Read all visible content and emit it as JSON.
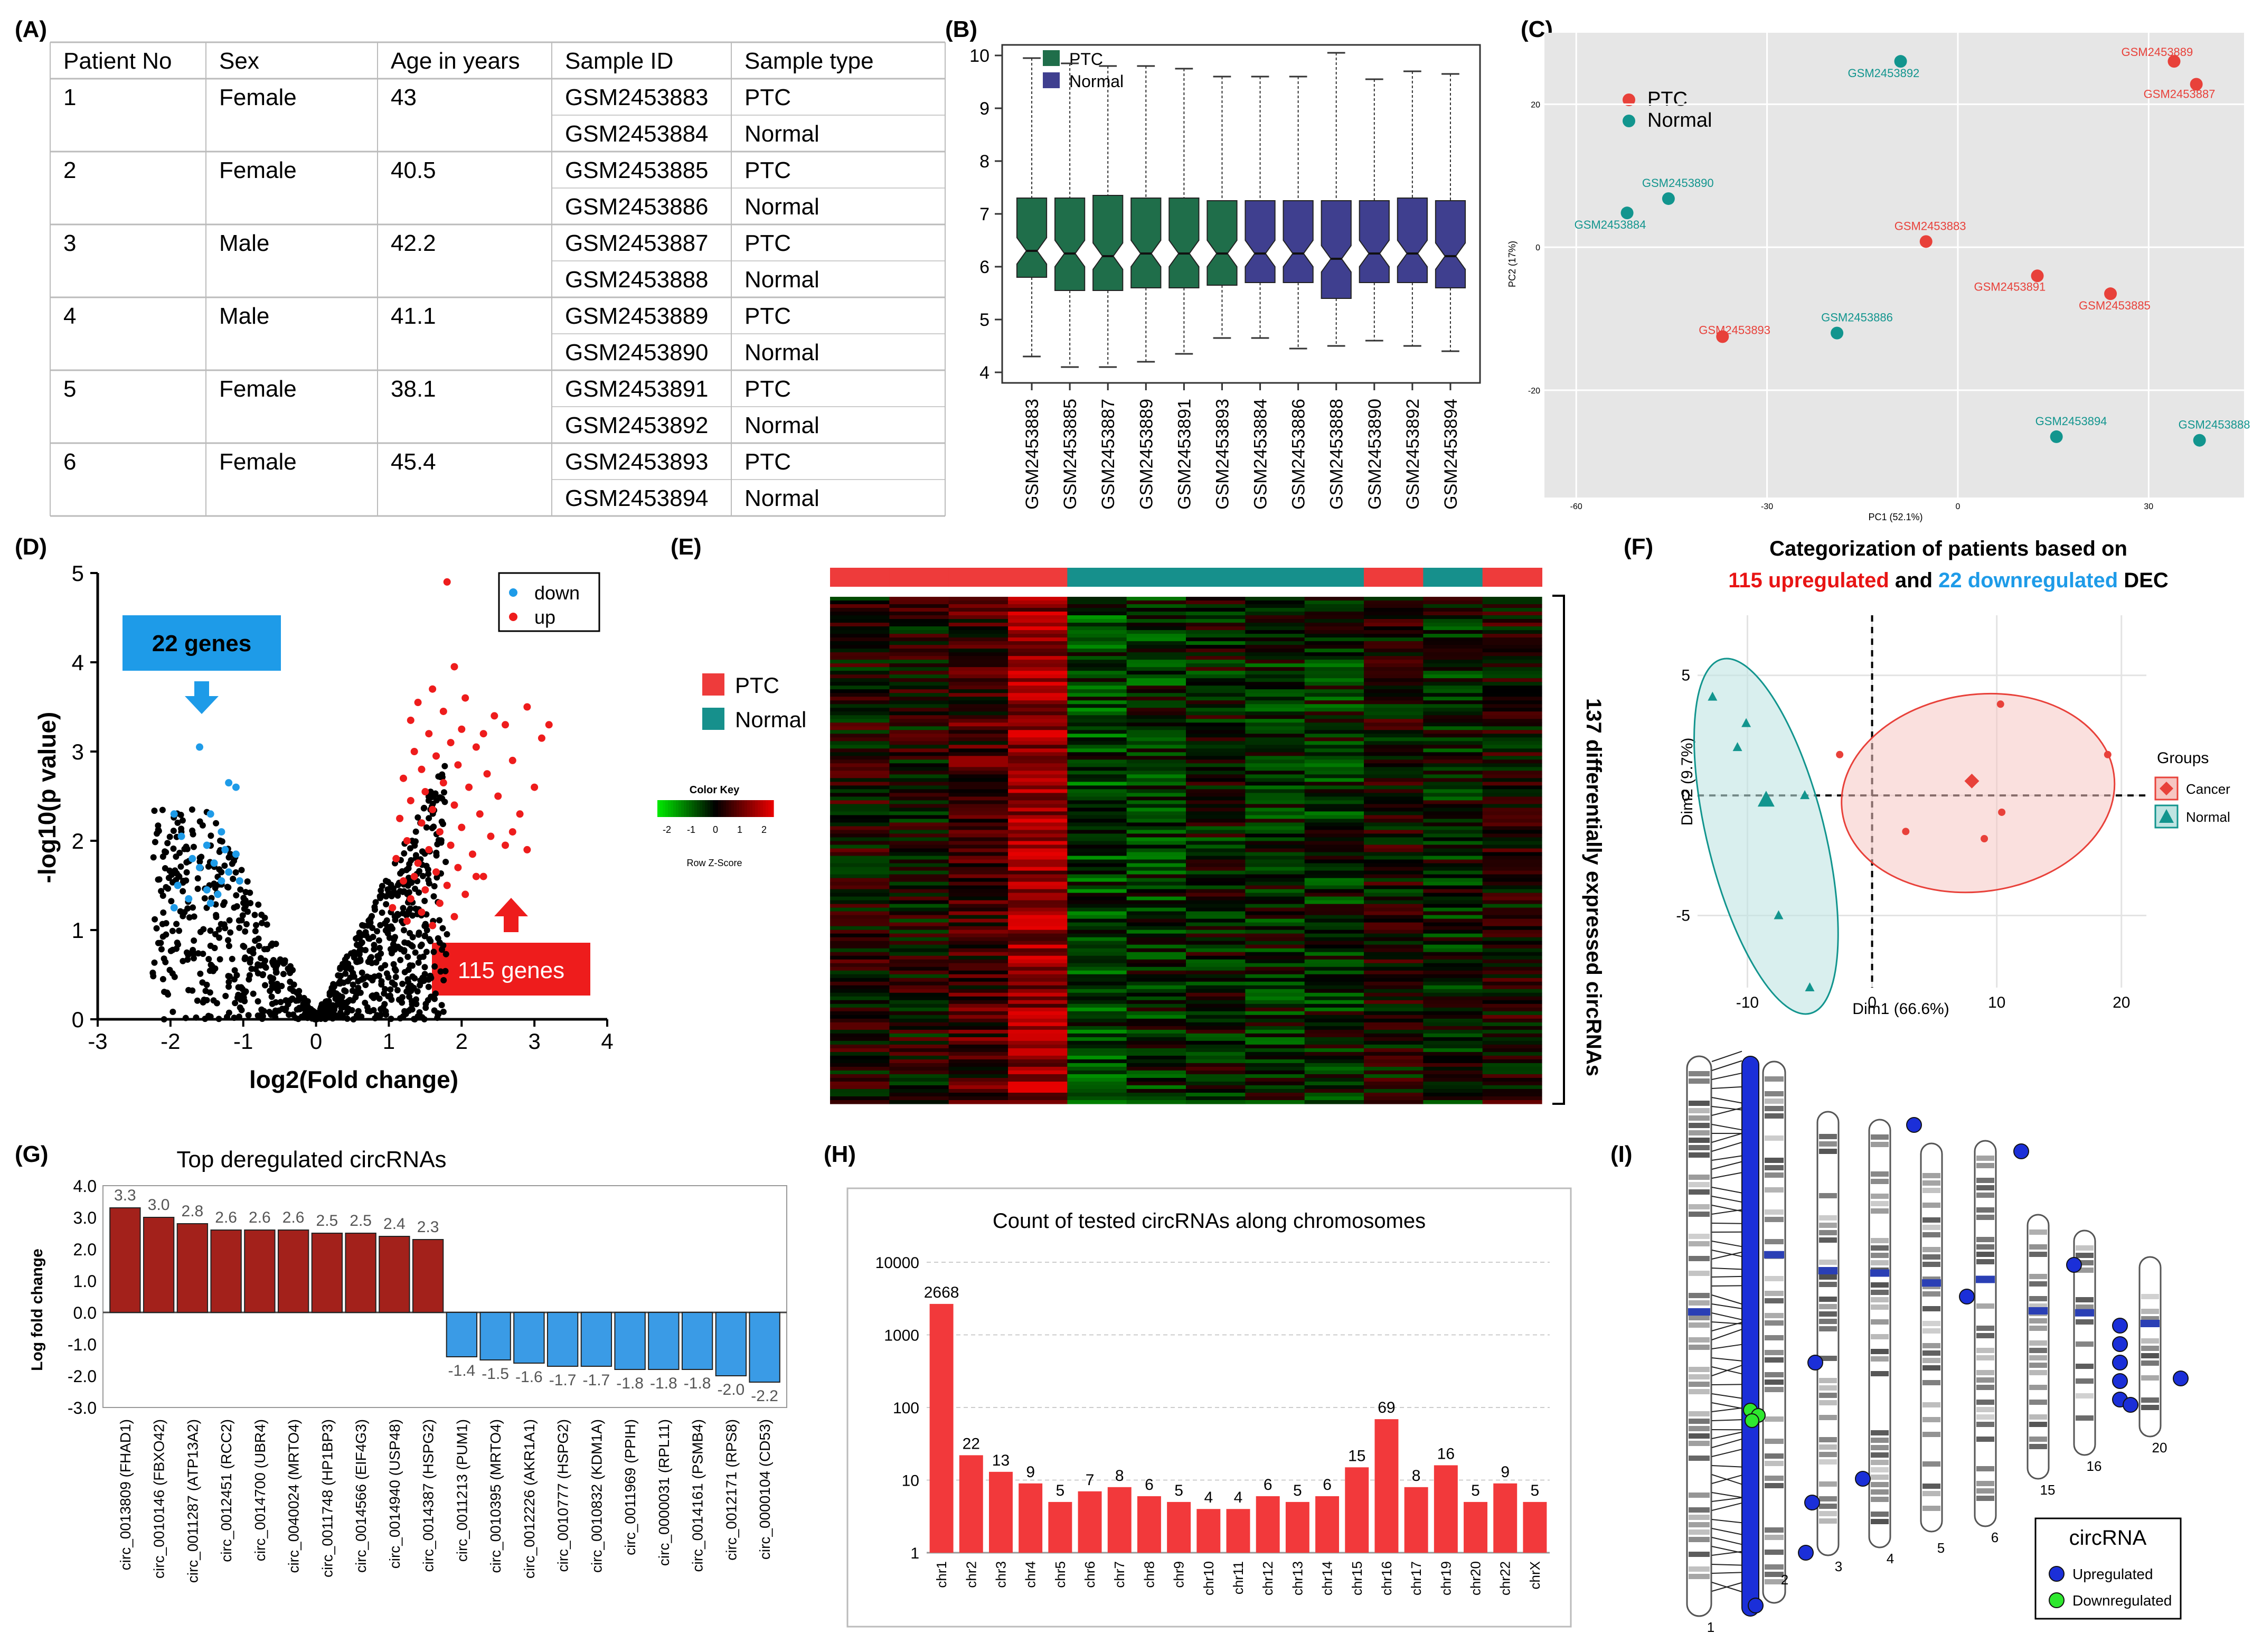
{
  "panel_labels": [
    "(A)",
    "(B)",
    "(C)",
    "(D)",
    "(E)",
    "(F)",
    "(G)",
    "(H)",
    "(I)"
  ],
  "colors": {
    "ptc_green": "#1f6e4a",
    "normal_blue": "#3f3f8f",
    "pca_red": "#e8413a",
    "pca_teal": "#12958e",
    "volcano_red": "#ee1c1c",
    "volcano_blue": "#1e9be8",
    "bar_red": "#a3211b",
    "bar_blue": "#3a9be6",
    "hist_red": "#f2393b",
    "up_blue": "#1b2fd8",
    "down_green": "#2ee82e"
  },
  "panelA": {
    "headers": [
      "Patient No",
      "Sex",
      "Age in years",
      "Sample ID",
      "Sample type"
    ],
    "patients": [
      {
        "no": "1",
        "sex": "Female",
        "age": "43",
        "samples": [
          [
            "GSM2453883",
            "PTC"
          ],
          [
            "GSM2453884",
            "Normal"
          ]
        ]
      },
      {
        "no": "2",
        "sex": "Female",
        "age": "40.5",
        "samples": [
          [
            "GSM2453885",
            "PTC"
          ],
          [
            "GSM2453886",
            "Normal"
          ]
        ]
      },
      {
        "no": "3",
        "sex": "Male",
        "age": "42.2",
        "samples": [
          [
            "GSM2453887",
            "PTC"
          ],
          [
            "GSM2453888",
            "Normal"
          ]
        ]
      },
      {
        "no": "4",
        "sex": "Male",
        "age": "41.1",
        "samples": [
          [
            "GSM2453889",
            "PTC"
          ],
          [
            "GSM2453890",
            "Normal"
          ]
        ]
      },
      {
        "no": "5",
        "sex": "Female",
        "age": "38.1",
        "samples": [
          [
            "GSM2453891",
            "PTC"
          ],
          [
            "GSM2453892",
            "Normal"
          ]
        ]
      },
      {
        "no": "6",
        "sex": "Female",
        "age": "45.4",
        "samples": [
          [
            "GSM2453893",
            "PTC"
          ],
          [
            "GSM2453894",
            "Normal"
          ]
        ]
      }
    ]
  },
  "chart_data": [
    {
      "id": "B",
      "type": "boxplot",
      "legend": [
        "PTC",
        "Normal"
      ],
      "ylim": [
        4,
        10
      ],
      "yticks": [
        4,
        5,
        6,
        7,
        8,
        9,
        10
      ],
      "boxes": [
        {
          "label": "GSM2453883",
          "group": "PTC",
          "min": 4.3,
          "q1": 5.8,
          "med": 6.3,
          "q3": 7.3,
          "max": 9.95
        },
        {
          "label": "GSM2453885",
          "group": "PTC",
          "min": 4.1,
          "q1": 5.55,
          "med": 6.25,
          "q3": 7.3,
          "max": 9.85
        },
        {
          "label": "GSM2453887",
          "group": "PTC",
          "min": 4.1,
          "q1": 5.55,
          "med": 6.2,
          "q3": 7.35,
          "max": 9.8
        },
        {
          "label": "GSM2453889",
          "group": "PTC",
          "min": 4.2,
          "q1": 5.6,
          "med": 6.25,
          "q3": 7.3,
          "max": 9.8
        },
        {
          "label": "GSM2453891",
          "group": "PTC",
          "min": 4.35,
          "q1": 5.6,
          "med": 6.25,
          "q3": 7.3,
          "max": 9.75
        },
        {
          "label": "GSM2453893",
          "group": "PTC",
          "min": 4.65,
          "q1": 5.65,
          "med": 6.25,
          "q3": 7.25,
          "max": 9.6
        },
        {
          "label": "GSM2453884",
          "group": "Normal",
          "min": 4.65,
          "q1": 5.7,
          "med": 6.25,
          "q3": 7.25,
          "max": 9.6
        },
        {
          "label": "GSM2453886",
          "group": "Normal",
          "min": 4.45,
          "q1": 5.7,
          "med": 6.25,
          "q3": 7.25,
          "max": 9.6
        },
        {
          "label": "GSM2453888",
          "group": "Normal",
          "min": 4.5,
          "q1": 5.4,
          "med": 6.15,
          "q3": 7.25,
          "max": 10.05
        },
        {
          "label": "GSM2453890",
          "group": "Normal",
          "min": 4.6,
          "q1": 5.7,
          "med": 6.25,
          "q3": 7.25,
          "max": 9.55
        },
        {
          "label": "GSM2453892",
          "group": "Normal",
          "min": 4.5,
          "q1": 5.7,
          "med": 6.25,
          "q3": 7.3,
          "max": 9.7
        },
        {
          "label": "GSM2453894",
          "group": "Normal",
          "min": 4.4,
          "q1": 5.6,
          "med": 6.2,
          "q3": 7.25,
          "max": 9.65
        }
      ]
    },
    {
      "id": "C",
      "type": "scatter",
      "xlabel": "PC1 (52.1%)",
      "ylabel": "PC2 (17%)",
      "xlim": [
        -65,
        45
      ],
      "ylim": [
        -35,
        30
      ],
      "xticks": [
        -60,
        -30,
        0,
        30
      ],
      "yticks": [
        -20,
        0,
        20
      ],
      "legend": [
        "PTC",
        "Normal"
      ],
      "points": [
        {
          "label": "GSM2453889",
          "group": "PTC",
          "x": 34,
          "y": 26
        },
        {
          "label": "GSM2453887",
          "group": "PTC",
          "x": 37.5,
          "y": 22.8
        },
        {
          "label": "GSM2453883",
          "group": "PTC",
          "x": -5,
          "y": 0.8
        },
        {
          "label": "GSM2453891",
          "group": "PTC",
          "x": 12.5,
          "y": -4
        },
        {
          "label": "GSM2453885",
          "group": "PTC",
          "x": 24,
          "y": -6.5
        },
        {
          "label": "GSM2453893",
          "group": "PTC",
          "x": -37,
          "y": -12.5
        },
        {
          "label": "GSM2453892",
          "group": "Normal",
          "x": -9,
          "y": 26
        },
        {
          "label": "GSM2453890",
          "group": "Normal",
          "x": -45.5,
          "y": 6.8
        },
        {
          "label": "GSM2453884",
          "group": "Normal",
          "x": -52,
          "y": 4.8
        },
        {
          "label": "GSM2453886",
          "group": "Normal",
          "x": -19,
          "y": -12
        },
        {
          "label": "GSM2453894",
          "group": "Normal",
          "x": 15.5,
          "y": -26.5
        },
        {
          "label": "GSM2453888",
          "group": "Normal",
          "x": 38,
          "y": -27
        }
      ]
    },
    {
      "id": "D",
      "type": "scatter",
      "xlabel": "log2(Fold change)",
      "ylabel": "-log10(p value)",
      "xlim": [
        -3,
        4
      ],
      "ylim": [
        0,
        5
      ],
      "xticks": [
        -3,
        -2,
        -1,
        0,
        1,
        2,
        3,
        4
      ],
      "yticks": [
        0,
        1,
        2,
        3,
        4,
        5
      ],
      "legend": [
        "down",
        "up"
      ],
      "annotations": [
        "22 genes",
        "115 genes"
      ],
      "down_points": [
        [
          -1.6,
          3.05
        ],
        [
          -1.2,
          2.65
        ],
        [
          -1.1,
          2.6
        ],
        [
          -1.95,
          2.3
        ],
        [
          -1.45,
          2.3
        ],
        [
          -1.3,
          2.1
        ],
        [
          -1.85,
          2.05
        ],
        [
          -1.5,
          1.95
        ],
        [
          -1.25,
          1.9
        ],
        [
          -1.1,
          1.85
        ],
        [
          -1.7,
          1.8
        ],
        [
          -1.4,
          1.75
        ],
        [
          -1.6,
          1.7
        ],
        [
          -1.2,
          1.65
        ],
        [
          -1.3,
          1.55
        ],
        [
          -1.05,
          1.55
        ],
        [
          -1.9,
          1.5
        ],
        [
          -1.5,
          1.45
        ],
        [
          -1.35,
          1.4
        ],
        [
          -1.75,
          1.35
        ],
        [
          -1.45,
          1.3
        ],
        [
          -1.95,
          1.25
        ]
      ],
      "up_points": [
        [
          1.8,
          4.9
        ],
        [
          2.9,
          3.5
        ],
        [
          2.6,
          3.3
        ],
        [
          3.2,
          3.3
        ],
        [
          3.1,
          3.15
        ],
        [
          2.3,
          3.2
        ],
        [
          1.9,
          3.95
        ],
        [
          1.6,
          3.7
        ],
        [
          2.05,
          3.6
        ],
        [
          1.4,
          3.55
        ],
        [
          1.75,
          3.45
        ],
        [
          2.45,
          3.4
        ],
        [
          1.3,
          3.35
        ],
        [
          2.0,
          3.25
        ],
        [
          1.55,
          3.2
        ],
        [
          1.85,
          3.1
        ],
        [
          2.2,
          3.05
        ],
        [
          1.35,
          3.0
        ],
        [
          1.65,
          2.95
        ],
        [
          2.7,
          2.9
        ],
        [
          1.95,
          2.85
        ],
        [
          1.45,
          2.8
        ],
        [
          2.35,
          2.75
        ],
        [
          1.2,
          2.7
        ],
        [
          1.75,
          2.65
        ],
        [
          2.1,
          2.6
        ],
        [
          1.5,
          2.55
        ],
        [
          2.5,
          2.5
        ],
        [
          1.3,
          2.45
        ],
        [
          1.9,
          2.4
        ],
        [
          1.6,
          2.35
        ],
        [
          2.25,
          2.3
        ],
        [
          2.8,
          2.3
        ],
        [
          1.15,
          2.25
        ],
        [
          1.45,
          2.2
        ],
        [
          2.0,
          2.15
        ],
        [
          1.7,
          2.1
        ],
        [
          2.4,
          2.05
        ],
        [
          1.25,
          2.0
        ],
        [
          1.85,
          1.95
        ],
        [
          2.6,
          1.95
        ],
        [
          1.55,
          1.9
        ],
        [
          2.15,
          1.85
        ],
        [
          1.1,
          1.8
        ],
        [
          1.4,
          1.75
        ],
        [
          1.95,
          1.7
        ],
        [
          2.9,
          1.9
        ],
        [
          1.65,
          1.65
        ],
        [
          2.3,
          1.6
        ],
        [
          1.2,
          1.55
        ],
        [
          1.8,
          1.5
        ],
        [
          1.5,
          1.45
        ],
        [
          2.05,
          1.4
        ],
        [
          1.3,
          1.35
        ],
        [
          1.7,
          1.3
        ],
        [
          1.05,
          1.25
        ],
        [
          1.45,
          1.2
        ],
        [
          1.9,
          1.15
        ],
        [
          1.25,
          1.1
        ],
        [
          1.6,
          1.05
        ],
        [
          2.2,
          1.6
        ],
        [
          1.35,
          1.6
        ],
        [
          2.7,
          2.1
        ],
        [
          3.0,
          2.6
        ]
      ]
    },
    {
      "id": "E",
      "type": "heatmap",
      "legend": [
        "PTC",
        "Normal"
      ],
      "color_key_title": "Color Key",
      "color_key_xlabel": "Row Z-Score",
      "color_key_ticks": [
        "-2",
        "-1",
        "0",
        "1",
        "2"
      ],
      "side_label": "137 differentially expressed circRNAs",
      "column_groups": [
        "PTC",
        "PTC",
        "PTC",
        "PTC",
        "Normal",
        "Normal",
        "Normal",
        "Normal",
        "Normal",
        "PTC",
        "Normal",
        "PTC"
      ],
      "rows": 137
    },
    {
      "id": "F",
      "type": "scatter",
      "title_line1": "Categorization of patients based on",
      "title_line2_a": "115 upregulated",
      "title_line2_b": " and ",
      "title_line2_c": "22 downregulated",
      "title_line2_d": " DEC",
      "xlabel": "Dim1 (66.6%)",
      "ylabel": "Dim2 (9.7%)",
      "xlim": [
        -14,
        22
      ],
      "ylim": [
        -8,
        7.5
      ],
      "xticks": [
        -10,
        0,
        10,
        20
      ],
      "yticks": [
        -5,
        0,
        5
      ],
      "legend_title": "Groups",
      "legend": [
        "Cancer",
        "Normal"
      ],
      "cancer_points": [
        [
          10.3,
          3.8
        ],
        [
          18.9,
          1.7
        ],
        [
          -2.6,
          1.7
        ],
        [
          2.7,
          -1.5
        ],
        [
          9.0,
          -1.8
        ],
        [
          10.4,
          -0.7
        ],
        [
          8.0,
          0.6
        ]
      ],
      "normal_points": [
        [
          -12.8,
          4.1
        ],
        [
          -10.1,
          3.0
        ],
        [
          -10.8,
          2.0
        ],
        [
          -5.4,
          0.0
        ],
        [
          -7.5,
          -5.0
        ],
        [
          -5.0,
          -8.0
        ],
        [
          -8.5,
          -0.2
        ]
      ],
      "cancer_centroid": [
        8.0,
        0.6
      ],
      "normal_centroid": [
        -8.5,
        -0.2
      ]
    },
    {
      "id": "G",
      "type": "bar",
      "title": "Top deregulated circRNAs",
      "ylabel": "Log fold change",
      "ylim": [
        -3,
        4
      ],
      "yticks": [
        "4.0",
        "3.0",
        "2.0",
        "1.0",
        "0.0",
        "-1.0",
        "-2.0",
        "-3.0"
      ],
      "categories": [
        "circ_0013809 (FHAD1)",
        "circ_0010146 (FBXO42)",
        "circ_0011287 (ATP13A2)",
        "circ_0012451 (RCC2)",
        "circ_0014700 (UBR4)",
        "circ_0040024 (MRTO4)",
        "circ_0011748 (HP1BP3)",
        "circ_0014566 (EIF4G3)",
        "circ_0014940 (USP48)",
        "circ_0014387 (HSPG2)",
        "circ_0011213 (PUM1)",
        "circ_0010395 (MRTO4)",
        "circ_0012226 (AKR1A1)",
        "circ_0010777 (HSPG2)",
        "circ_0010832 (KDM1A)",
        "circ_0011969 (PPIH)",
        "circ_0000031 (RPL11)",
        "circ_0014161 (PSMB4)",
        "circ_0012171 (RPS8)",
        "circ_0000104 (CD53)"
      ],
      "values": [
        3.3,
        3.0,
        2.8,
        2.6,
        2.6,
        2.6,
        2.5,
        2.5,
        2.4,
        2.3,
        -1.4,
        -1.5,
        -1.6,
        -1.7,
        -1.7,
        -1.8,
        -1.8,
        -1.8,
        -2.0,
        -2.2
      ],
      "value_labels": [
        "3.3",
        "3.0",
        "2.8",
        "2.6",
        "2.6",
        "2.6",
        "2.5",
        "2.5",
        "2.4",
        "2.3",
        "-1.4",
        "-1.5",
        "-1.6",
        "-1.7",
        "-1.7",
        "-1.8",
        "-1.8",
        "-1.8",
        "-2.0",
        "-2.2"
      ]
    },
    {
      "id": "H",
      "type": "bar",
      "scale": "log",
      "title": "Count of tested circRNAs along chromosomes",
      "yticks": [
        "10000",
        "1000",
        "100",
        "10",
        "1"
      ],
      "categories": [
        "chr1",
        "chr2",
        "chr3",
        "chr4",
        "chr5",
        "chr6",
        "chr7",
        "chr8",
        "chr9",
        "chr10",
        "chr11",
        "chr12",
        "chr13",
        "chr14",
        "chr15",
        "chr16",
        "chr17",
        "chr19",
        "chr20",
        "chr22",
        "chrX"
      ],
      "values": [
        2668,
        22,
        13,
        9,
        5,
        7,
        8,
        6,
        5,
        4,
        4,
        6,
        5,
        6,
        15,
        69,
        8,
        16,
        5,
        9,
        5
      ]
    },
    {
      "id": "I",
      "type": "ideogram",
      "chromosome_labels": [
        "1",
        "2",
        "3",
        "4",
        "5",
        "6",
        "15",
        "16",
        "20"
      ],
      "legend_title": "circRNA",
      "legend": [
        "Upregulated",
        "Downregulated"
      ]
    }
  ]
}
